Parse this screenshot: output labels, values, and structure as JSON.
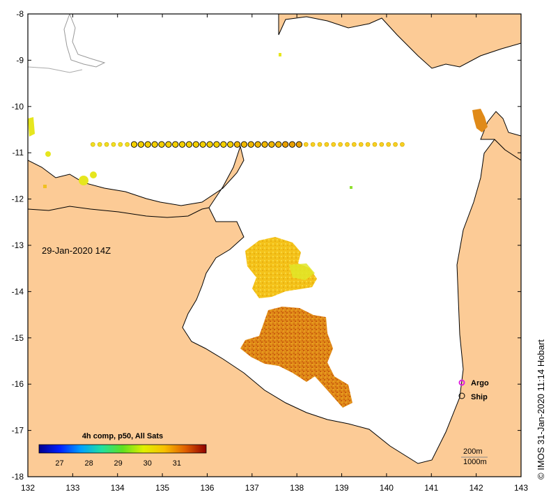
{
  "map": {
    "lon_range": [
      132,
      143
    ],
    "lat_range": [
      -18,
      -8
    ],
    "x_ticks": [
      "132",
      "133",
      "134",
      "135",
      "136",
      "137",
      "138",
      "139",
      "140",
      "141",
      "142",
      "143"
    ],
    "y_ticks": [
      "-8",
      "-9",
      "-10",
      "-11",
      "-12",
      "-13",
      "-14",
      "-15",
      "-16",
      "-17",
      "-18"
    ],
    "timestamp_label": "29-Jan-2020 14Z",
    "land_color": "#fccb96",
    "sea_color": "#ffffff"
  },
  "colorbar": {
    "title": "4h comp, p50, All Sats",
    "ticks": [
      "27",
      "28",
      "29",
      "30",
      "31"
    ],
    "range": [
      26.3,
      32.0
    ]
  },
  "legend": {
    "argo_label": "Argo",
    "ship_label": "Ship",
    "argo_color": "#e020e0"
  },
  "contours": {
    "label_200": "200m",
    "label_1000": "1000m"
  },
  "ship_track": {
    "lat": -10.82,
    "lon_start": 133.45,
    "lon_end": 140.35,
    "count": 46
  },
  "credit": "© IMOS 31-Jan-2020 11:14 Hobart"
}
